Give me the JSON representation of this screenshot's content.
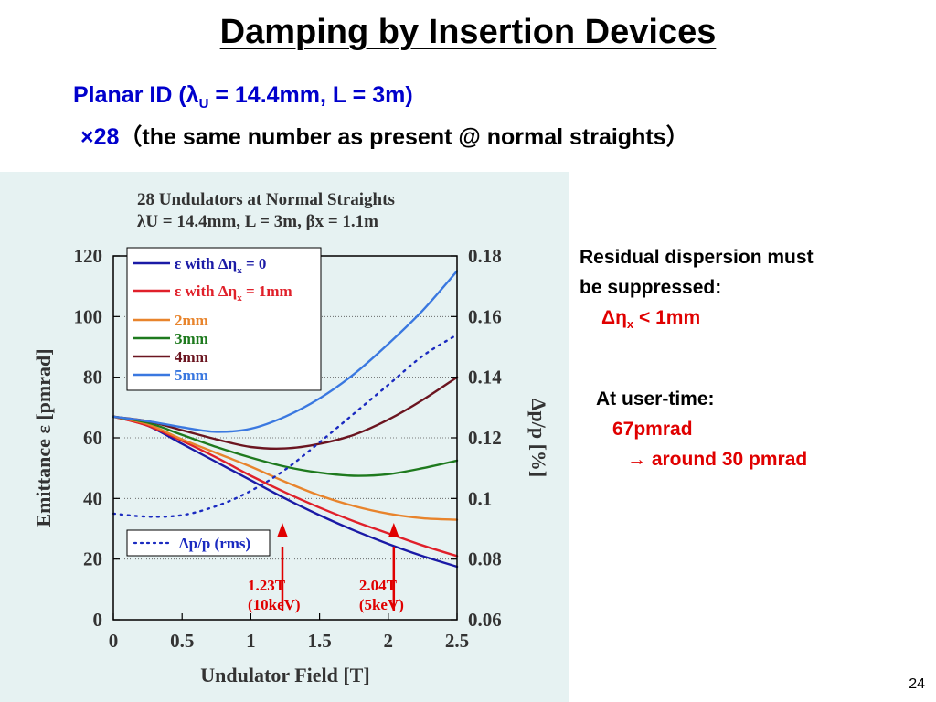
{
  "slide": {
    "title": "Damping by Insertion Devices",
    "subtitle_line1_pre": "Planar ID (",
    "lambda_symbol": "λ",
    "lambda_sub": "U",
    "subtitle_line1_post": " = 14.4mm, L = 3m)",
    "subtitle_line2_count": "×28",
    "subtitle_line2_text": "（the same number as present @ normal straights）",
    "page_number": "24"
  },
  "notes": {
    "residual_line1": "Residual dispersion must",
    "residual_line2": "be suppressed:",
    "constraint": "Δη",
    "constraint_sub": "x",
    "constraint_value": " < 1mm",
    "user_time": "At user-time:",
    "value1": "67pmrad",
    "value2": "→ around 30 pmrad"
  },
  "colors": {
    "background_panel": "#e6f2f2",
    "title_blue": "#0000cc",
    "accent_red": "#e00000"
  },
  "chart_data": {
    "type": "line",
    "title_line1": "28 Undulators at Normal Straights",
    "title_line2": "λU = 14.4mm, L = 3m,   βx = 1.1m",
    "xlabel": "Undulator Field [T]",
    "ylabel": "Emittance ε [pmrad]",
    "y2label": "Δp/p [%]",
    "xlim": [
      0,
      2.5
    ],
    "ylim": [
      0,
      120
    ],
    "y2lim": [
      0.06,
      0.18
    ],
    "x_ticks": [
      "0",
      "0.5",
      "1",
      "1.5",
      "2",
      "2.5"
    ],
    "y_ticks": [
      "0",
      "20",
      "40",
      "60",
      "80",
      "100",
      "120"
    ],
    "y2_ticks": [
      "0.06",
      "0.08",
      "0.1",
      "0.12",
      "0.14",
      "0.16",
      "0.18"
    ],
    "grid": "horizontal dotted",
    "legend_position": "top-left",
    "x": [
      0,
      0.25,
      0.5,
      0.75,
      1.0,
      1.25,
      1.5,
      1.75,
      2.0,
      2.25,
      2.5
    ],
    "series": [
      {
        "name": "ε with Δηx = 0",
        "legend_main": "ε with Δη",
        "legend_sub": "x",
        "legend_suffix": " = 0",
        "color": "#1a1aa6",
        "dash": "solid",
        "axis": "left",
        "values": [
          67,
          64,
          58,
          52,
          46,
          40,
          34.5,
          29.5,
          25,
          21,
          17.5
        ]
      },
      {
        "name": "ε with Δηx = 1mm",
        "legend_main": "ε with Δη",
        "legend_sub": "x",
        "legend_suffix": " = 1mm",
        "color": "#e0202a",
        "dash": "solid",
        "axis": "left",
        "values": [
          67,
          64,
          59,
          53.5,
          47.5,
          42,
          37,
          32.5,
          28.5,
          24.5,
          21
        ]
      },
      {
        "name": "2mm",
        "color": "#e8842c",
        "dash": "solid",
        "axis": "left",
        "values": [
          67,
          64.5,
          59.5,
          55,
          50.5,
          45.5,
          41,
          37.5,
          35,
          33.5,
          33
        ]
      },
      {
        "name": "3mm",
        "color": "#1e7a1e",
        "dash": "solid",
        "axis": "left",
        "values": [
          67,
          65,
          61,
          57,
          53.5,
          50.5,
          48.5,
          47.5,
          48,
          50,
          52.5
        ]
      },
      {
        "name": "4mm",
        "color": "#6b1520",
        "dash": "solid",
        "axis": "left",
        "values": [
          67,
          65.5,
          62.5,
          59.5,
          57,
          56.5,
          58,
          61,
          66,
          72.5,
          80
        ]
      },
      {
        "name": "5mm",
        "color": "#3a78e0",
        "dash": "solid",
        "axis": "left",
        "values": [
          67,
          65.5,
          63.5,
          62,
          63,
          67,
          73,
          81,
          91,
          102,
          115
        ]
      },
      {
        "name": "Δp/p (rms)",
        "color": "#1a2ac0",
        "dash": "dotted",
        "axis": "right",
        "values": [
          0.095,
          0.094,
          0.0945,
          0.0975,
          0.1025,
          0.1095,
          0.1185,
          0.128,
          0.1375,
          0.147,
          0.154
        ]
      }
    ],
    "annotations": [
      {
        "x": 1.23,
        "line1": "1.23T",
        "line2": "(10keV)",
        "color": "#e00000"
      },
      {
        "x": 2.04,
        "line1": "2.04T",
        "line2": "(5keV)",
        "color": "#e00000"
      }
    ]
  }
}
